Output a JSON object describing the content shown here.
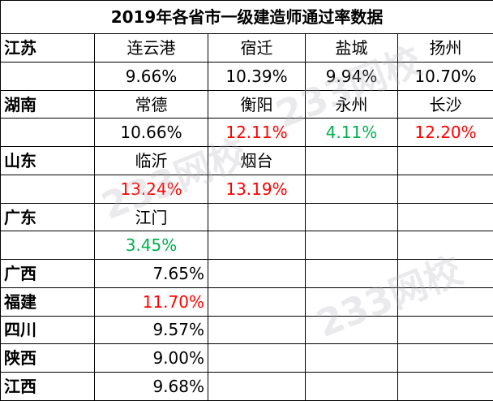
{
  "title": "2019年各省市一级建造师通过率数据",
  "watermark": "233网校",
  "colors": {
    "black": "#000000",
    "red": "#ff0000",
    "green": "#00b050"
  },
  "sections": [
    {
      "province": "江苏",
      "cities": [
        "连云港",
        "宿迁",
        "盐城",
        "扬州"
      ],
      "rates": [
        {
          "text": "9.66%",
          "color": "black"
        },
        {
          "text": "10.39%",
          "color": "black"
        },
        {
          "text": "9.94%",
          "color": "black"
        },
        {
          "text": "10.70%",
          "color": "black"
        }
      ]
    },
    {
      "province": "湖南",
      "cities": [
        "常德",
        "衡阳",
        "永州",
        "长沙"
      ],
      "rates": [
        {
          "text": "10.66%",
          "color": "black"
        },
        {
          "text": "12.11%",
          "color": "red"
        },
        {
          "text": "4.11%",
          "color": "green"
        },
        {
          "text": "12.20%",
          "color": "red"
        }
      ]
    },
    {
      "province": "山东",
      "cities": [
        "临沂",
        "烟台",
        "",
        ""
      ],
      "rates": [
        {
          "text": "13.24%",
          "color": "red"
        },
        {
          "text": "13.19%",
          "color": "red"
        },
        {
          "text": "",
          "color": "black"
        },
        {
          "text": "",
          "color": "black"
        }
      ]
    },
    {
      "province": "广东",
      "cities": [
        "江门",
        "",
        "",
        ""
      ],
      "rates": [
        {
          "text": "3.45%",
          "color": "green"
        },
        {
          "text": "",
          "color": "black"
        },
        {
          "text": "",
          "color": "black"
        },
        {
          "text": "",
          "color": "black"
        }
      ]
    }
  ],
  "single_rows": [
    {
      "province": "广西",
      "rate": {
        "text": "7.65%",
        "color": "black"
      }
    },
    {
      "province": "福建",
      "rate": {
        "text": "11.70%",
        "color": "red"
      }
    },
    {
      "province": "四川",
      "rate": {
        "text": "9.57%",
        "color": "black"
      }
    },
    {
      "province": "陕西",
      "rate": {
        "text": "9.00%",
        "color": "black"
      }
    },
    {
      "province": "江西",
      "rate": {
        "text": "9.68%",
        "color": "black"
      }
    }
  ]
}
